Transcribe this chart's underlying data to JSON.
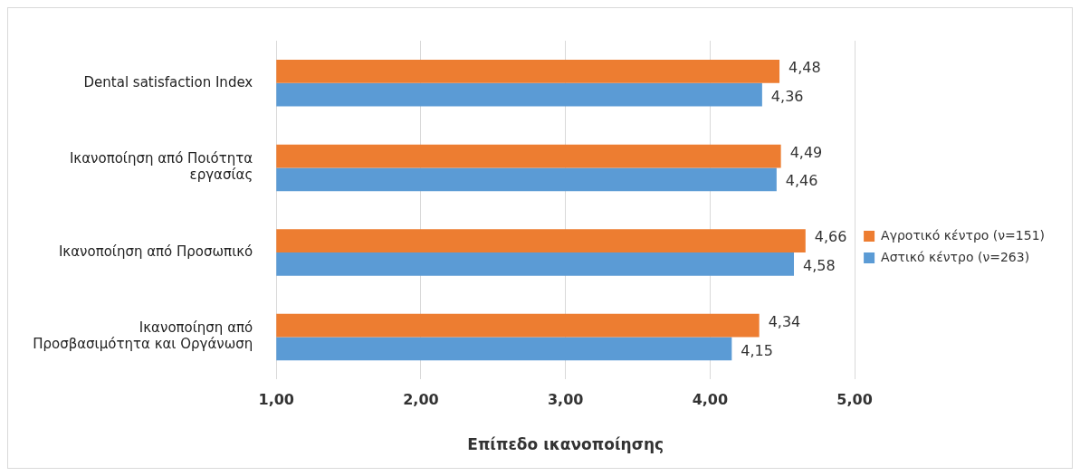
{
  "chart_data": {
    "type": "bar",
    "orientation": "horizontal",
    "xlabel": "Επίπεδο ικανοποίησης",
    "categories": [
      "Dental satisfaction Index",
      "Ικανοποίηση από Ποιότητα εργασίας",
      "Ικανοποίηση από Προσωπικό",
      "Ικανοποίηση από Προσβασιμότητα και Οργάνωση"
    ],
    "series": [
      {
        "name": "Αγροτικό κέντρο (ν=151)",
        "color": "#ed7d31",
        "values": [
          4.48,
          4.49,
          4.66,
          4.34
        ],
        "value_labels": [
          "4,48",
          "4,49",
          "4,66",
          "4,34"
        ]
      },
      {
        "name": "Αστικό κέντρο (ν=263)",
        "color": "#5b9bd5",
        "values": [
          4.36,
          4.46,
          4.58,
          4.15
        ],
        "value_labels": [
          "4,36",
          "4,46",
          "4,58",
          "4,15"
        ]
      }
    ],
    "xlim": [
      1,
      5
    ],
    "xticks": [
      {
        "value": 1,
        "label": "1,00"
      },
      {
        "value": 2,
        "label": "2,00"
      },
      {
        "value": 3,
        "label": "3,00"
      },
      {
        "value": 4,
        "label": "4,00"
      },
      {
        "value": 5,
        "label": "5,00"
      }
    ],
    "grid": "x",
    "legend": "right"
  }
}
